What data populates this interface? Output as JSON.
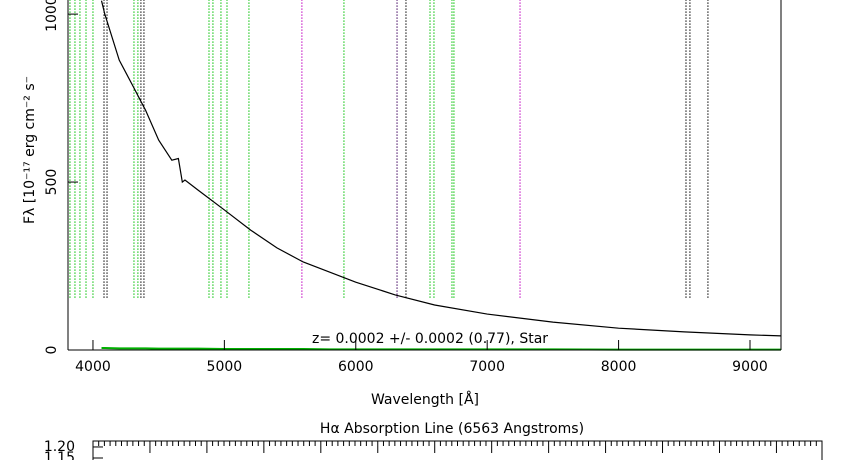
{
  "chart_data": [
    {
      "type": "line",
      "xlabel": "Wavelength [Å]",
      "ylabel": "Fλ [10⁻¹⁷ erg cm⁻² s⁻",
      "annotation": "z= 0.0002 +/- 0.0002 (0.77), Star",
      "xlim": [
        3810,
        9236
      ],
      "ylim": [
        0,
        1042
      ],
      "xticks": [
        4000,
        5000,
        6000,
        7000,
        8000,
        9000
      ],
      "yticks": [
        0,
        500,
        1000
      ],
      "x": [
        4065,
        4090,
        4200,
        4300,
        4400,
        4500,
        4600,
        4650,
        4680,
        4700,
        4800,
        5000,
        5200,
        5400,
        5600,
        5800,
        6000,
        6300,
        6600,
        7000,
        7500,
        8000,
        8500,
        9000,
        9236
      ],
      "series": [
        {
          "color": "#000000",
          "values": [
            1040,
            1000,
            863,
            789,
            714,
            625,
            565,
            570,
            500,
            506,
            476,
            417,
            357,
            304,
            262,
            232,
            202,
            164,
            134,
            107,
            83,
            65,
            54,
            45,
            42
          ]
        },
        {
          "color": "#00b000",
          "values": [
            6,
            6,
            5,
            5,
            5,
            4,
            4,
            4,
            4,
            4,
            4,
            3,
            3,
            3,
            3,
            2,
            2,
            2,
            2,
            2,
            2,
            1,
            1,
            1,
            1
          ]
        }
      ],
      "markers": {
        "range": [
          155,
          1042
        ],
        "x": [
          3825,
          3863,
          3901,
          3947,
          4000,
          4084,
          4107,
          4312,
          4342,
          4365,
          4388,
          4883,
          4913,
          4974,
          5020,
          5187,
          5590,
          5910,
          6314,
          6382,
          6565,
          6595,
          6732,
          6747,
          7250,
          8513,
          8543,
          8680
        ],
        "colors": [
          "#00c000",
          "#00c000",
          "#00c000",
          "#00c000",
          "#00c000",
          "#000000",
          "#000000",
          "#00c000",
          "#00c000",
          "#000000",
          "#000000",
          "#00c000",
          "#00c000",
          "#00c000",
          "#00c000",
          "#00c000",
          "#c000c0",
          "#00c000",
          "#400060",
          "#000000",
          "#00c000",
          "#00c000",
          "#00c000",
          "#00c000",
          "#c000c0",
          "#000000",
          "#000000",
          "#000000"
        ]
      }
    },
    {
      "type": "panel",
      "title": "Hα Absorption Line (6563 Angstroms)",
      "ylim": [
        1.141,
        1.227
      ],
      "yticks": [
        {
          "value": 1.2,
          "label": "1.20"
        },
        {
          "value": 1.15,
          "label": "1.15"
        }
      ]
    }
  ]
}
